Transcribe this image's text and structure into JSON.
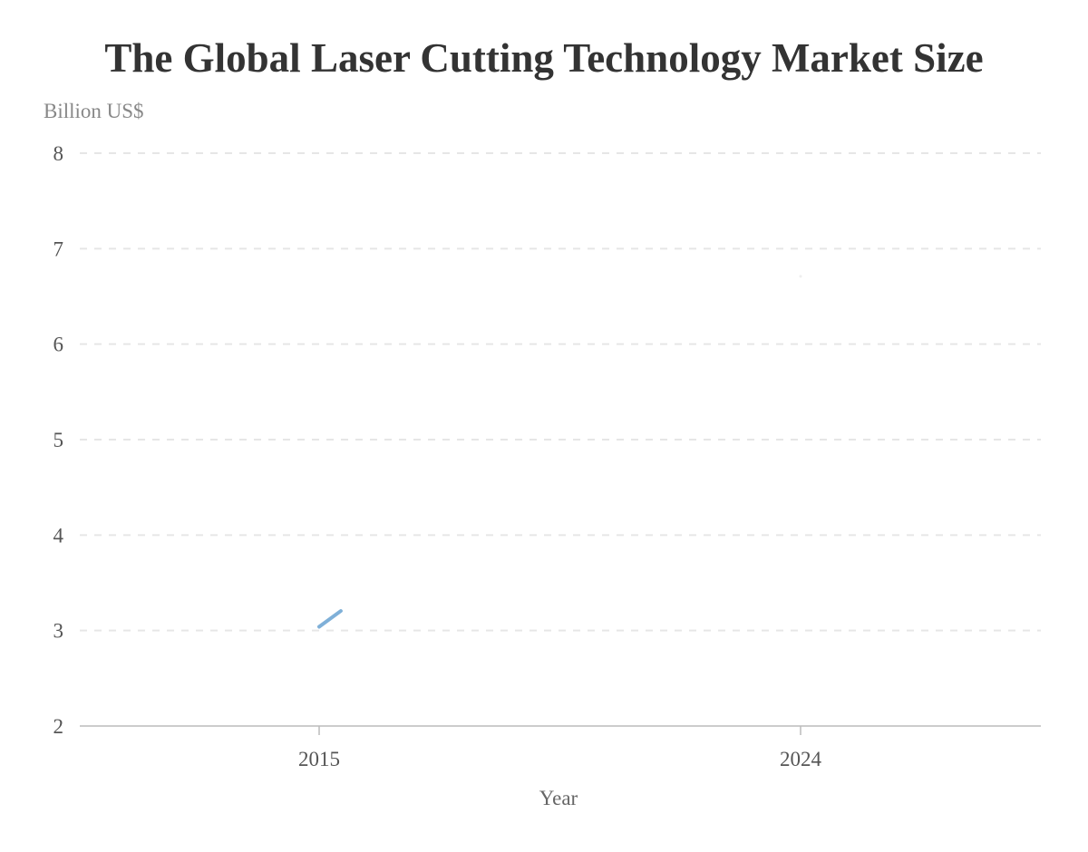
{
  "chart_data": {
    "type": "line",
    "title": "The Global Laser Cutting Technology Market Size",
    "ylabel": "Billion US$",
    "xlabel": "Year",
    "x": [
      2015,
      2024
    ],
    "series": [
      {
        "values": [
          3.04,
          6.71
        ],
        "color": "#7fb0d8"
      }
    ],
    "xticks": [
      "2015",
      "2024"
    ],
    "yticks": [
      "2",
      "3",
      "4",
      "5",
      "6",
      "7",
      "8"
    ],
    "ylim": [
      2,
      8
    ],
    "grid": "horizontal dashed",
    "legend": "none"
  }
}
